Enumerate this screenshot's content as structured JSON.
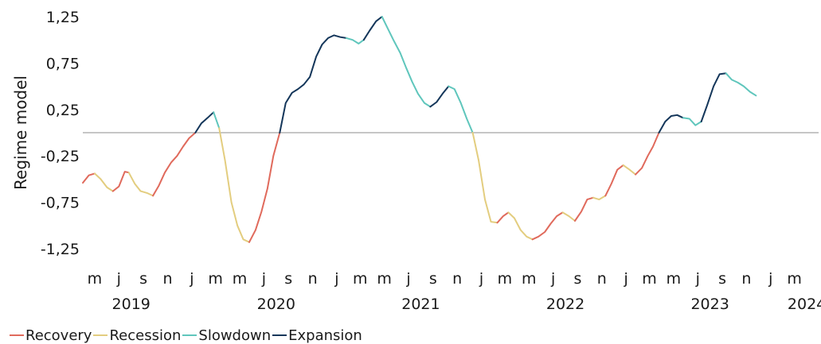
{
  "chart_data": {
    "type": "line",
    "title": "",
    "ylabel": "Regime model",
    "xlabel": "",
    "ylim": [
      -1.35,
      1.35
    ],
    "yticks": [
      1.25,
      0.75,
      0.25,
      -0.25,
      -0.75,
      -1.25
    ],
    "ytick_labels": [
      "1,25",
      "0,75",
      "0,25",
      "-0,25",
      "-0,75",
      "-1,25"
    ],
    "reference_line": 0,
    "x_start": "2019-04",
    "x_end": "2024-05",
    "month_ticks": [
      {
        "date": "2019-05",
        "label": "m"
      },
      {
        "date": "2019-07",
        "label": "j"
      },
      {
        "date": "2019-09",
        "label": "s"
      },
      {
        "date": "2019-11",
        "label": "n"
      },
      {
        "date": "2020-01",
        "label": "j"
      },
      {
        "date": "2020-03",
        "label": "m"
      },
      {
        "date": "2020-05",
        "label": "m"
      },
      {
        "date": "2020-07",
        "label": "j"
      },
      {
        "date": "2020-09",
        "label": "s"
      },
      {
        "date": "2020-11",
        "label": "n"
      },
      {
        "date": "2021-01",
        "label": "j"
      },
      {
        "date": "2021-03",
        "label": "m"
      },
      {
        "date": "2021-05",
        "label": "m"
      },
      {
        "date": "2021-07",
        "label": "j"
      },
      {
        "date": "2021-09",
        "label": "s"
      },
      {
        "date": "2021-11",
        "label": "n"
      },
      {
        "date": "2022-01",
        "label": "j"
      },
      {
        "date": "2022-03",
        "label": "m"
      },
      {
        "date": "2022-05",
        "label": "m"
      },
      {
        "date": "2022-07",
        "label": "j"
      },
      {
        "date": "2022-09",
        "label": "s"
      },
      {
        "date": "2022-11",
        "label": "n"
      },
      {
        "date": "2023-01",
        "label": "j"
      },
      {
        "date": "2023-03",
        "label": "m"
      },
      {
        "date": "2023-05",
        "label": "m"
      },
      {
        "date": "2023-07",
        "label": "j"
      },
      {
        "date": "2023-09",
        "label": "s"
      },
      {
        "date": "2023-11",
        "label": "n"
      },
      {
        "date": "2024-01",
        "label": "j"
      },
      {
        "date": "2024-03",
        "label": "m"
      }
    ],
    "year_labels": [
      {
        "date": "2019-08",
        "label": "2019"
      },
      {
        "date": "2020-08",
        "label": "2020"
      },
      {
        "date": "2021-08",
        "label": "2021"
      },
      {
        "date": "2022-08",
        "label": "2022"
      },
      {
        "date": "2023-08",
        "label": "2023"
      },
      {
        "date": "2024-04",
        "label": "2024"
      }
    ],
    "regimes": [
      {
        "name": "Recovery",
        "color": "#e06a5c"
      },
      {
        "name": "Recession",
        "color": "#e3cd7f"
      },
      {
        "name": "Slowdown",
        "color": "#5fc6bc"
      },
      {
        "name": "Expansion",
        "color": "#14365a"
      }
    ],
    "series": [
      {
        "regime": "Recovery",
        "points": [
          [
            "2019-04-01",
            -0.54
          ],
          [
            "2019-04-16",
            -0.46
          ],
          [
            "2019-05-01",
            -0.44
          ]
        ]
      },
      {
        "regime": "Recession",
        "points": [
          [
            "2019-05-01",
            -0.44
          ],
          [
            "2019-05-16",
            -0.5
          ],
          [
            "2019-06-01",
            -0.59
          ],
          [
            "2019-06-16",
            -0.63
          ]
        ]
      },
      {
        "regime": "Recovery",
        "points": [
          [
            "2019-06-16",
            -0.63
          ],
          [
            "2019-07-01",
            -0.58
          ],
          [
            "2019-07-16",
            -0.42
          ],
          [
            "2019-07-26",
            -0.43
          ]
        ]
      },
      {
        "regime": "Recession",
        "points": [
          [
            "2019-07-26",
            -0.43
          ],
          [
            "2019-08-10",
            -0.55
          ],
          [
            "2019-08-25",
            -0.63
          ],
          [
            "2019-09-10",
            -0.65
          ],
          [
            "2019-09-25",
            -0.68
          ]
        ]
      },
      {
        "regime": "Recovery",
        "points": [
          [
            "2019-09-25",
            -0.68
          ],
          [
            "2019-10-10",
            -0.57
          ],
          [
            "2019-10-25",
            -0.43
          ],
          [
            "2019-11-10",
            -0.32
          ],
          [
            "2019-11-25",
            -0.25
          ],
          [
            "2019-12-10",
            -0.15
          ],
          [
            "2019-12-25",
            -0.06
          ],
          [
            "2020-01-10",
            0.0
          ]
        ]
      },
      {
        "regime": "Expansion",
        "points": [
          [
            "2020-01-10",
            0.0
          ],
          [
            "2020-01-25",
            0.1
          ],
          [
            "2020-02-10",
            0.16
          ],
          [
            "2020-02-25",
            0.22
          ]
        ]
      },
      {
        "regime": "Slowdown",
        "points": [
          [
            "2020-02-25",
            0.22
          ],
          [
            "2020-03-10",
            0.05
          ]
        ]
      },
      {
        "regime": "Recession",
        "points": [
          [
            "2020-03-10",
            0.05
          ],
          [
            "2020-03-25",
            -0.3
          ],
          [
            "2020-04-10",
            -0.75
          ],
          [
            "2020-04-25",
            -1.0
          ],
          [
            "2020-05-10",
            -1.15
          ],
          [
            "2020-05-25",
            -1.18
          ]
        ]
      },
      {
        "regime": "Recovery",
        "points": [
          [
            "2020-05-25",
            -1.18
          ],
          [
            "2020-06-10",
            -1.05
          ],
          [
            "2020-06-25",
            -0.85
          ],
          [
            "2020-07-10",
            -0.6
          ],
          [
            "2020-07-25",
            -0.25
          ],
          [
            "2020-08-10",
            0.0
          ]
        ]
      },
      {
        "regime": "Expansion",
        "points": [
          [
            "2020-08-10",
            0.0
          ],
          [
            "2020-08-25",
            0.32
          ],
          [
            "2020-09-10",
            0.43
          ],
          [
            "2020-09-25",
            0.47
          ],
          [
            "2020-10-10",
            0.52
          ],
          [
            "2020-10-25",
            0.6
          ],
          [
            "2020-11-10",
            0.82
          ],
          [
            "2020-11-25",
            0.95
          ],
          [
            "2020-12-10",
            1.02
          ],
          [
            "2020-12-25",
            1.05
          ],
          [
            "2021-01-10",
            1.03
          ],
          [
            "2021-01-25",
            1.02
          ]
        ]
      },
      {
        "regime": "Slowdown",
        "points": [
          [
            "2021-01-25",
            1.02
          ],
          [
            "2021-02-10",
            1.0
          ],
          [
            "2021-02-25",
            0.96
          ],
          [
            "2021-03-10",
            1.0
          ]
        ]
      },
      {
        "regime": "Expansion",
        "points": [
          [
            "2021-03-10",
            1.0
          ],
          [
            "2021-03-25",
            1.1
          ],
          [
            "2021-04-10",
            1.2
          ],
          [
            "2021-04-25",
            1.25
          ]
        ]
      },
      {
        "regime": "Slowdown",
        "points": [
          [
            "2021-04-25",
            1.25
          ],
          [
            "2021-05-10",
            1.12
          ],
          [
            "2021-05-25",
            0.99
          ],
          [
            "2021-06-10",
            0.86
          ],
          [
            "2021-06-25",
            0.7
          ],
          [
            "2021-07-10",
            0.55
          ],
          [
            "2021-07-25",
            0.42
          ],
          [
            "2021-08-10",
            0.32
          ],
          [
            "2021-08-25",
            0.28
          ]
        ]
      },
      {
        "regime": "Expansion",
        "points": [
          [
            "2021-08-25",
            0.28
          ],
          [
            "2021-09-10",
            0.33
          ],
          [
            "2021-09-25",
            0.42
          ],
          [
            "2021-10-10",
            0.5
          ]
        ]
      },
      {
        "regime": "Slowdown",
        "points": [
          [
            "2021-10-10",
            0.5
          ],
          [
            "2021-10-25",
            0.47
          ],
          [
            "2021-11-10",
            0.32
          ],
          [
            "2021-11-25",
            0.15
          ],
          [
            "2021-12-10",
            0.0
          ]
        ]
      },
      {
        "regime": "Recession",
        "points": [
          [
            "2021-12-10",
            0.0
          ],
          [
            "2021-12-25",
            -0.3
          ],
          [
            "2022-01-10",
            -0.72
          ],
          [
            "2022-01-25",
            -0.96
          ],
          [
            "2022-02-10",
            -0.97
          ]
        ]
      },
      {
        "regime": "Recovery",
        "points": [
          [
            "2022-02-10",
            -0.97
          ],
          [
            "2022-02-25",
            -0.9
          ],
          [
            "2022-03-10",
            -0.86
          ]
        ]
      },
      {
        "regime": "Recession",
        "points": [
          [
            "2022-03-10",
            -0.86
          ],
          [
            "2022-03-25",
            -0.92
          ],
          [
            "2022-04-10",
            -1.05
          ],
          [
            "2022-04-25",
            -1.12
          ],
          [
            "2022-05-10",
            -1.15
          ]
        ]
      },
      {
        "regime": "Recovery",
        "points": [
          [
            "2022-05-10",
            -1.15
          ],
          [
            "2022-05-25",
            -1.12
          ],
          [
            "2022-06-10",
            -1.07
          ],
          [
            "2022-06-25",
            -0.98
          ],
          [
            "2022-07-10",
            -0.9
          ],
          [
            "2022-07-25",
            -0.86
          ]
        ]
      },
      {
        "regime": "Recession",
        "points": [
          [
            "2022-07-25",
            -0.86
          ],
          [
            "2022-08-10",
            -0.9
          ],
          [
            "2022-08-25",
            -0.95
          ]
        ]
      },
      {
        "regime": "Recovery",
        "points": [
          [
            "2022-08-25",
            -0.95
          ],
          [
            "2022-09-10",
            -0.85
          ],
          [
            "2022-09-25",
            -0.72
          ],
          [
            "2022-10-10",
            -0.7
          ]
        ]
      },
      {
        "regime": "Recession",
        "points": [
          [
            "2022-10-10",
            -0.7
          ],
          [
            "2022-10-25",
            -0.72
          ],
          [
            "2022-11-10",
            -0.68
          ]
        ]
      },
      {
        "regime": "Recovery",
        "points": [
          [
            "2022-11-10",
            -0.68
          ],
          [
            "2022-11-25",
            -0.55
          ],
          [
            "2022-12-10",
            -0.4
          ],
          [
            "2022-12-25",
            -0.35
          ]
        ]
      },
      {
        "regime": "Recession",
        "points": [
          [
            "2022-12-25",
            -0.35
          ],
          [
            "2023-01-10",
            -0.4
          ],
          [
            "2023-01-25",
            -0.45
          ]
        ]
      },
      {
        "regime": "Recovery",
        "points": [
          [
            "2023-01-25",
            -0.45
          ],
          [
            "2023-02-10",
            -0.38
          ],
          [
            "2023-02-25",
            -0.25
          ],
          [
            "2023-03-10",
            -0.15
          ],
          [
            "2023-03-25",
            0.0
          ]
        ]
      },
      {
        "regime": "Expansion",
        "points": [
          [
            "2023-03-25",
            0.0
          ],
          [
            "2023-04-10",
            0.12
          ],
          [
            "2023-04-25",
            0.18
          ],
          [
            "2023-05-10",
            0.19
          ],
          [
            "2023-05-25",
            0.16
          ]
        ]
      },
      {
        "regime": "Slowdown",
        "points": [
          [
            "2023-05-25",
            0.16
          ],
          [
            "2023-06-10",
            0.15
          ],
          [
            "2023-06-25",
            0.08
          ],
          [
            "2023-07-10",
            0.12
          ]
        ]
      },
      {
        "regime": "Expansion",
        "points": [
          [
            "2023-07-10",
            0.12
          ],
          [
            "2023-07-25",
            0.3
          ],
          [
            "2023-08-10",
            0.5
          ],
          [
            "2023-08-25",
            0.63
          ],
          [
            "2023-09-10",
            0.64
          ]
        ]
      },
      {
        "regime": "Slowdown",
        "points": [
          [
            "2023-09-10",
            0.64
          ],
          [
            "2023-09-25",
            0.57
          ],
          [
            "2023-10-10",
            0.54
          ],
          [
            "2023-10-25",
            0.5
          ],
          [
            "2023-11-10",
            0.44
          ],
          [
            "2023-11-25",
            0.4
          ]
        ]
      }
    ]
  }
}
